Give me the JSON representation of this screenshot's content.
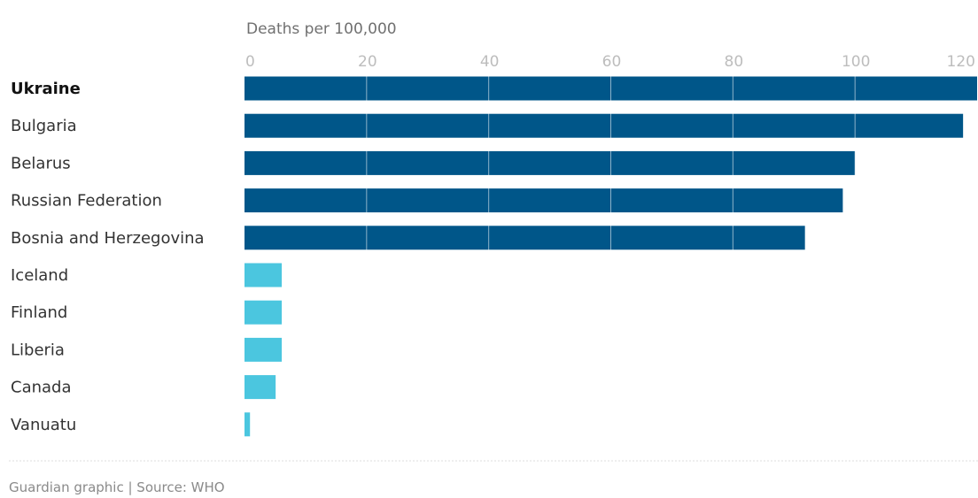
{
  "chart_data": {
    "type": "bar",
    "orientation": "horizontal",
    "xlabel": "Deaths per 100,000",
    "xlim": [
      0,
      120
    ],
    "ticks": [
      0,
      20,
      40,
      60,
      80,
      100,
      120
    ],
    "categories": [
      "Ukraine",
      "Bulgaria",
      "Belarus",
      "Russian Federation",
      "Bosnia and Herzegovina",
      "Iceland",
      "Finland",
      "Liberia",
      "Canada",
      "Vanuatu"
    ],
    "values": [
      120,
      117.7,
      100,
      98,
      91.8,
      6.1,
      6.1,
      6.1,
      5.1,
      0.9
    ],
    "highlighted_category": "Ukraine",
    "grid": true,
    "colors": {
      "highest_group": "#005689",
      "lowest_group": "#4bc6df",
      "gridline": "#ffffff",
      "separator": "#dcdcdc"
    },
    "group_of_each_bar": [
      "highest",
      "highest",
      "highest",
      "highest",
      "highest",
      "lowest",
      "lowest",
      "lowest",
      "lowest",
      "lowest"
    ]
  },
  "footer": {
    "source": "Guardian graphic | Source: WHO"
  }
}
